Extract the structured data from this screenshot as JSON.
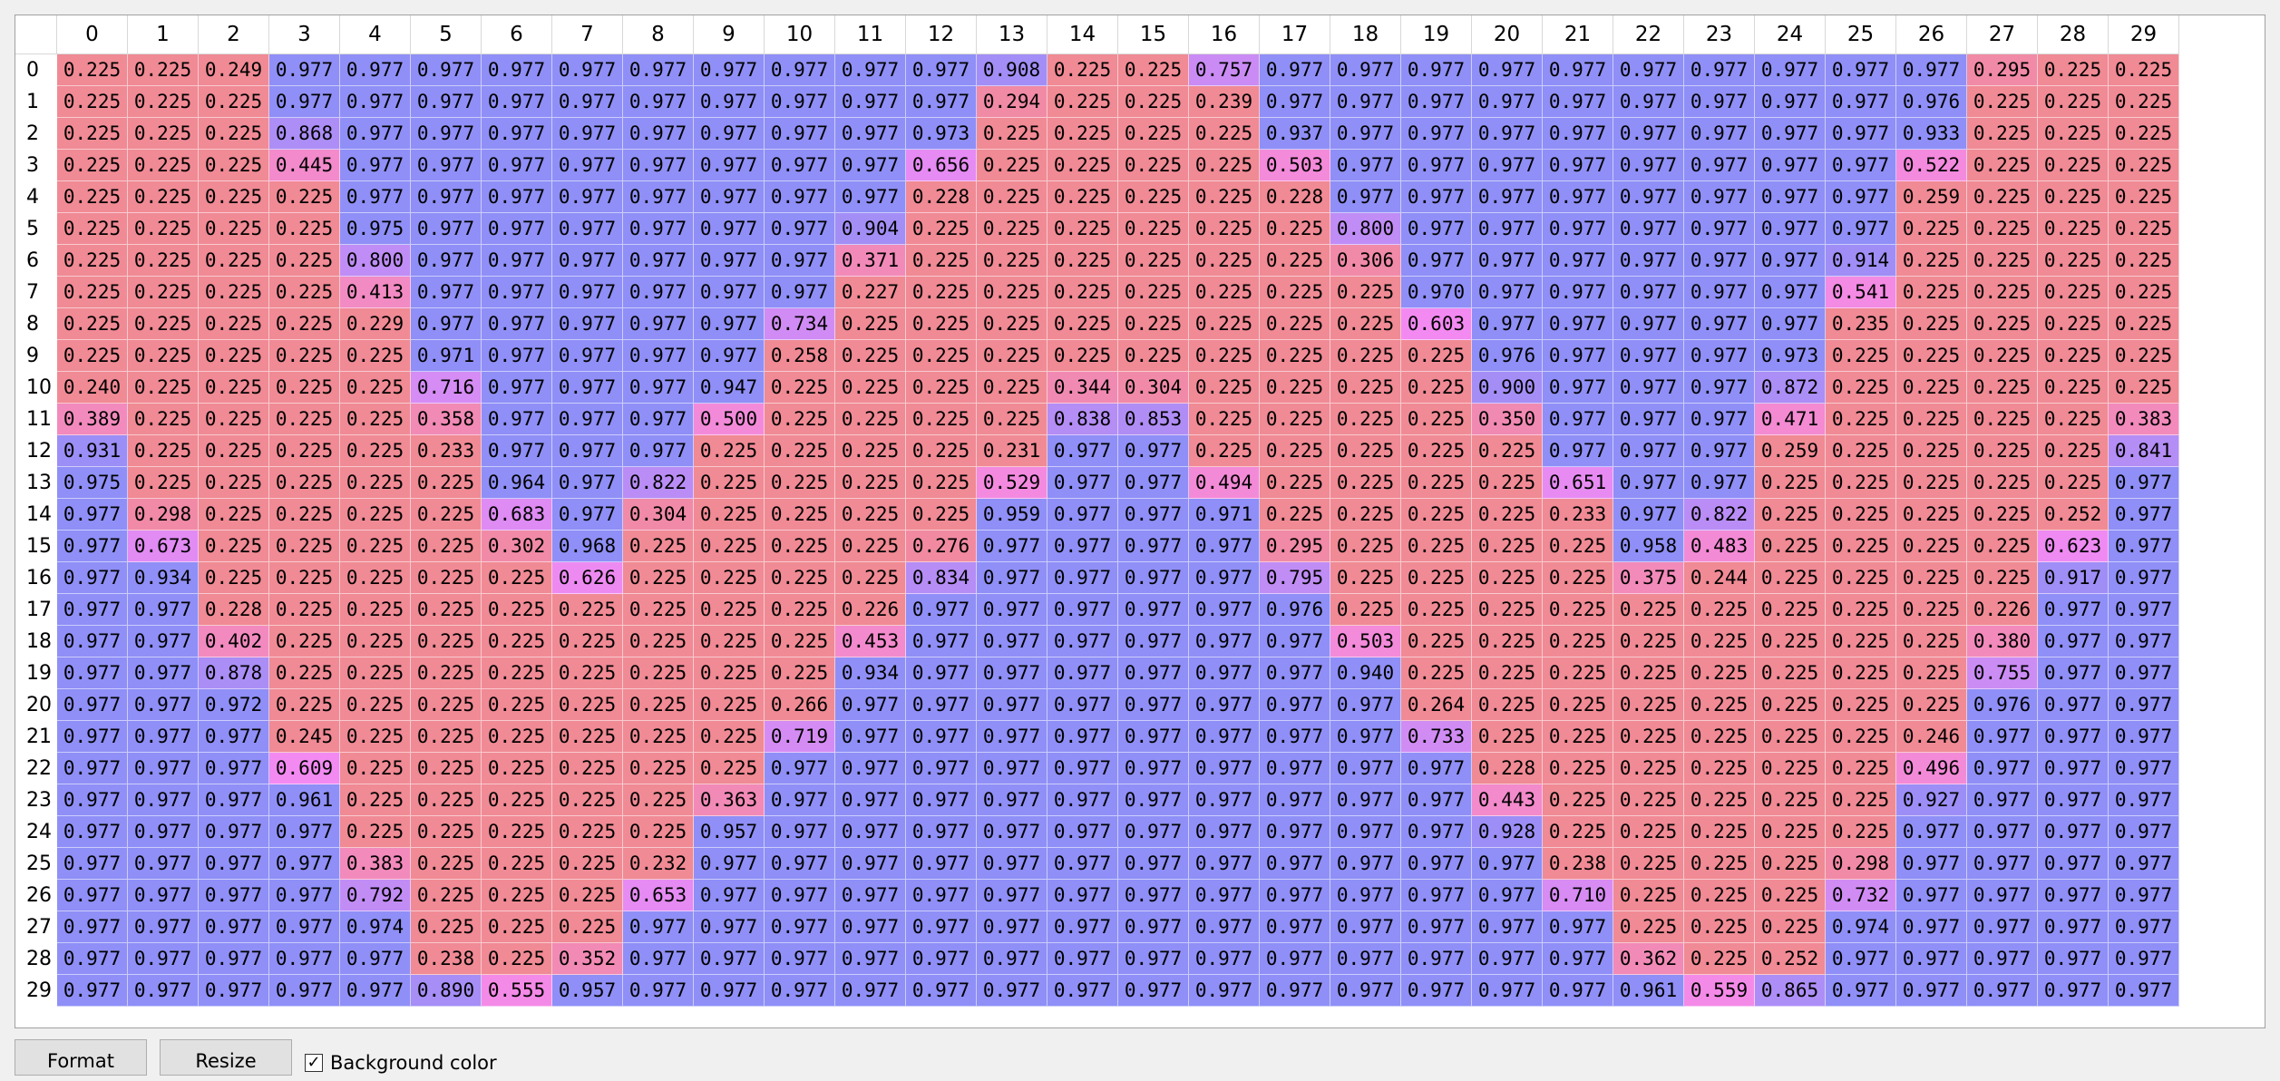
{
  "table": {
    "columns": [
      "0",
      "1",
      "2",
      "3",
      "4",
      "5",
      "6",
      "7",
      "8",
      "9",
      "10",
      "11",
      "12",
      "13",
      "14",
      "15",
      "16",
      "17",
      "18",
      "19",
      "20",
      "21",
      "22",
      "23",
      "24",
      "25",
      "26",
      "27",
      "28",
      "29"
    ],
    "rows": [
      "0",
      "1",
      "2",
      "3",
      "4",
      "5",
      "6",
      "7",
      "8",
      "9",
      "10",
      "11",
      "12",
      "13",
      "14",
      "15",
      "16",
      "17",
      "18",
      "19",
      "20",
      "21",
      "22",
      "23",
      "24",
      "25",
      "26",
      "27",
      "28",
      "29"
    ],
    "colors": {
      "low": "#f08a94",
      "high": "#8f8ff7",
      "mid": "#f48af2"
    },
    "cells": [
      [
        "0.225",
        "0.225",
        "0.249",
        "0.977",
        "0.977",
        "0.977",
        "0.977",
        "0.977",
        "0.977",
        "0.977",
        "0.977",
        "0.977",
        "0.977",
        "0.908",
        "0.225",
        "0.225",
        "0.757",
        "0.977",
        "0.977",
        "0.977",
        "0.977",
        "0.977",
        "0.977",
        "0.977",
        "0.977",
        "0.977",
        "0.977",
        "0.295",
        "0.225",
        "0.225"
      ],
      [
        "0.225",
        "0.225",
        "0.225",
        "0.977",
        "0.977",
        "0.977",
        "0.977",
        "0.977",
        "0.977",
        "0.977",
        "0.977",
        "0.977",
        "0.977",
        "0.294",
        "0.225",
        "0.225",
        "0.239",
        "0.977",
        "0.977",
        "0.977",
        "0.977",
        "0.977",
        "0.977",
        "0.977",
        "0.977",
        "0.977",
        "0.976",
        "0.225",
        "0.225",
        "0.225"
      ],
      [
        "0.225",
        "0.225",
        "0.225",
        "0.868",
        "0.977",
        "0.977",
        "0.977",
        "0.977",
        "0.977",
        "0.977",
        "0.977",
        "0.977",
        "0.973",
        "0.225",
        "0.225",
        "0.225",
        "0.225",
        "0.937",
        "0.977",
        "0.977",
        "0.977",
        "0.977",
        "0.977",
        "0.977",
        "0.977",
        "0.977",
        "0.933",
        "0.225",
        "0.225",
        "0.225"
      ],
      [
        "0.225",
        "0.225",
        "0.225",
        "0.445",
        "0.977",
        "0.977",
        "0.977",
        "0.977",
        "0.977",
        "0.977",
        "0.977",
        "0.977",
        "0.656",
        "0.225",
        "0.225",
        "0.225",
        "0.225",
        "0.503",
        "0.977",
        "0.977",
        "0.977",
        "0.977",
        "0.977",
        "0.977",
        "0.977",
        "0.977",
        "0.522",
        "0.225",
        "0.225",
        "0.225"
      ],
      [
        "0.225",
        "0.225",
        "0.225",
        "0.225",
        "0.977",
        "0.977",
        "0.977",
        "0.977",
        "0.977",
        "0.977",
        "0.977",
        "0.977",
        "0.228",
        "0.225",
        "0.225",
        "0.225",
        "0.225",
        "0.228",
        "0.977",
        "0.977",
        "0.977",
        "0.977",
        "0.977",
        "0.977",
        "0.977",
        "0.977",
        "0.259",
        "0.225",
        "0.225",
        "0.225"
      ],
      [
        "0.225",
        "0.225",
        "0.225",
        "0.225",
        "0.975",
        "0.977",
        "0.977",
        "0.977",
        "0.977",
        "0.977",
        "0.977",
        "0.904",
        "0.225",
        "0.225",
        "0.225",
        "0.225",
        "0.225",
        "0.225",
        "0.800",
        "0.977",
        "0.977",
        "0.977",
        "0.977",
        "0.977",
        "0.977",
        "0.977",
        "0.225",
        "0.225",
        "0.225",
        "0.225"
      ],
      [
        "0.225",
        "0.225",
        "0.225",
        "0.225",
        "0.800",
        "0.977",
        "0.977",
        "0.977",
        "0.977",
        "0.977",
        "0.977",
        "0.371",
        "0.225",
        "0.225",
        "0.225",
        "0.225",
        "0.225",
        "0.225",
        "0.306",
        "0.977",
        "0.977",
        "0.977",
        "0.977",
        "0.977",
        "0.977",
        "0.914",
        "0.225",
        "0.225",
        "0.225",
        "0.225"
      ],
      [
        "0.225",
        "0.225",
        "0.225",
        "0.225",
        "0.413",
        "0.977",
        "0.977",
        "0.977",
        "0.977",
        "0.977",
        "0.977",
        "0.227",
        "0.225",
        "0.225",
        "0.225",
        "0.225",
        "0.225",
        "0.225",
        "0.225",
        "0.970",
        "0.977",
        "0.977",
        "0.977",
        "0.977",
        "0.977",
        "0.541",
        "0.225",
        "0.225",
        "0.225",
        "0.225"
      ],
      [
        "0.225",
        "0.225",
        "0.225",
        "0.225",
        "0.229",
        "0.977",
        "0.977",
        "0.977",
        "0.977",
        "0.977",
        "0.734",
        "0.225",
        "0.225",
        "0.225",
        "0.225",
        "0.225",
        "0.225",
        "0.225",
        "0.225",
        "0.603",
        "0.977",
        "0.977",
        "0.977",
        "0.977",
        "0.977",
        "0.235",
        "0.225",
        "0.225",
        "0.225",
        "0.225"
      ],
      [
        "0.225",
        "0.225",
        "0.225",
        "0.225",
        "0.225",
        "0.971",
        "0.977",
        "0.977",
        "0.977",
        "0.977",
        "0.258",
        "0.225",
        "0.225",
        "0.225",
        "0.225",
        "0.225",
        "0.225",
        "0.225",
        "0.225",
        "0.225",
        "0.976",
        "0.977",
        "0.977",
        "0.977",
        "0.973",
        "0.225",
        "0.225",
        "0.225",
        "0.225",
        "0.225"
      ],
      [
        "0.240",
        "0.225",
        "0.225",
        "0.225",
        "0.225",
        "0.716",
        "0.977",
        "0.977",
        "0.977",
        "0.947",
        "0.225",
        "0.225",
        "0.225",
        "0.225",
        "0.344",
        "0.304",
        "0.225",
        "0.225",
        "0.225",
        "0.225",
        "0.900",
        "0.977",
        "0.977",
        "0.977",
        "0.872",
        "0.225",
        "0.225",
        "0.225",
        "0.225",
        "0.225"
      ],
      [
        "0.389",
        "0.225",
        "0.225",
        "0.225",
        "0.225",
        "0.358",
        "0.977",
        "0.977",
        "0.977",
        "0.500",
        "0.225",
        "0.225",
        "0.225",
        "0.225",
        "0.838",
        "0.853",
        "0.225",
        "0.225",
        "0.225",
        "0.225",
        "0.350",
        "0.977",
        "0.977",
        "0.977",
        "0.471",
        "0.225",
        "0.225",
        "0.225",
        "0.225",
        "0.383"
      ],
      [
        "0.931",
        "0.225",
        "0.225",
        "0.225",
        "0.225",
        "0.233",
        "0.977",
        "0.977",
        "0.977",
        "0.225",
        "0.225",
        "0.225",
        "0.225",
        "0.231",
        "0.977",
        "0.977",
        "0.225",
        "0.225",
        "0.225",
        "0.225",
        "0.225",
        "0.977",
        "0.977",
        "0.977",
        "0.259",
        "0.225",
        "0.225",
        "0.225",
        "0.225",
        "0.841"
      ],
      [
        "0.975",
        "0.225",
        "0.225",
        "0.225",
        "0.225",
        "0.225",
        "0.964",
        "0.977",
        "0.822",
        "0.225",
        "0.225",
        "0.225",
        "0.225",
        "0.529",
        "0.977",
        "0.977",
        "0.494",
        "0.225",
        "0.225",
        "0.225",
        "0.225",
        "0.651",
        "0.977",
        "0.977",
        "0.225",
        "0.225",
        "0.225",
        "0.225",
        "0.225",
        "0.977"
      ],
      [
        "0.977",
        "0.298",
        "0.225",
        "0.225",
        "0.225",
        "0.225",
        "0.683",
        "0.977",
        "0.304",
        "0.225",
        "0.225",
        "0.225",
        "0.225",
        "0.959",
        "0.977",
        "0.977",
        "0.971",
        "0.225",
        "0.225",
        "0.225",
        "0.225",
        "0.233",
        "0.977",
        "0.822",
        "0.225",
        "0.225",
        "0.225",
        "0.225",
        "0.252",
        "0.977"
      ],
      [
        "0.977",
        "0.673",
        "0.225",
        "0.225",
        "0.225",
        "0.225",
        "0.302",
        "0.968",
        "0.225",
        "0.225",
        "0.225",
        "0.225",
        "0.276",
        "0.977",
        "0.977",
        "0.977",
        "0.977",
        "0.295",
        "0.225",
        "0.225",
        "0.225",
        "0.225",
        "0.958",
        "0.483",
        "0.225",
        "0.225",
        "0.225",
        "0.225",
        "0.623",
        "0.977"
      ],
      [
        "0.977",
        "0.934",
        "0.225",
        "0.225",
        "0.225",
        "0.225",
        "0.225",
        "0.626",
        "0.225",
        "0.225",
        "0.225",
        "0.225",
        "0.834",
        "0.977",
        "0.977",
        "0.977",
        "0.977",
        "0.795",
        "0.225",
        "0.225",
        "0.225",
        "0.225",
        "0.375",
        "0.244",
        "0.225",
        "0.225",
        "0.225",
        "0.225",
        "0.917",
        "0.977"
      ],
      [
        "0.977",
        "0.977",
        "0.228",
        "0.225",
        "0.225",
        "0.225",
        "0.225",
        "0.225",
        "0.225",
        "0.225",
        "0.225",
        "0.226",
        "0.977",
        "0.977",
        "0.977",
        "0.977",
        "0.977",
        "0.976",
        "0.225",
        "0.225",
        "0.225",
        "0.225",
        "0.225",
        "0.225",
        "0.225",
        "0.225",
        "0.225",
        "0.226",
        "0.977",
        "0.977"
      ],
      [
        "0.977",
        "0.977",
        "0.402",
        "0.225",
        "0.225",
        "0.225",
        "0.225",
        "0.225",
        "0.225",
        "0.225",
        "0.225",
        "0.453",
        "0.977",
        "0.977",
        "0.977",
        "0.977",
        "0.977",
        "0.977",
        "0.503",
        "0.225",
        "0.225",
        "0.225",
        "0.225",
        "0.225",
        "0.225",
        "0.225",
        "0.225",
        "0.380",
        "0.977",
        "0.977"
      ],
      [
        "0.977",
        "0.977",
        "0.878",
        "0.225",
        "0.225",
        "0.225",
        "0.225",
        "0.225",
        "0.225",
        "0.225",
        "0.225",
        "0.934",
        "0.977",
        "0.977",
        "0.977",
        "0.977",
        "0.977",
        "0.977",
        "0.940",
        "0.225",
        "0.225",
        "0.225",
        "0.225",
        "0.225",
        "0.225",
        "0.225",
        "0.225",
        "0.755",
        "0.977",
        "0.977"
      ],
      [
        "0.977",
        "0.977",
        "0.972",
        "0.225",
        "0.225",
        "0.225",
        "0.225",
        "0.225",
        "0.225",
        "0.225",
        "0.266",
        "0.977",
        "0.977",
        "0.977",
        "0.977",
        "0.977",
        "0.977",
        "0.977",
        "0.977",
        "0.264",
        "0.225",
        "0.225",
        "0.225",
        "0.225",
        "0.225",
        "0.225",
        "0.225",
        "0.976",
        "0.977",
        "0.977"
      ],
      [
        "0.977",
        "0.977",
        "0.977",
        "0.245",
        "0.225",
        "0.225",
        "0.225",
        "0.225",
        "0.225",
        "0.225",
        "0.719",
        "0.977",
        "0.977",
        "0.977",
        "0.977",
        "0.977",
        "0.977",
        "0.977",
        "0.977",
        "0.733",
        "0.225",
        "0.225",
        "0.225",
        "0.225",
        "0.225",
        "0.225",
        "0.246",
        "0.977",
        "0.977",
        "0.977"
      ],
      [
        "0.977",
        "0.977",
        "0.977",
        "0.609",
        "0.225",
        "0.225",
        "0.225",
        "0.225",
        "0.225",
        "0.225",
        "0.977",
        "0.977",
        "0.977",
        "0.977",
        "0.977",
        "0.977",
        "0.977",
        "0.977",
        "0.977",
        "0.977",
        "0.228",
        "0.225",
        "0.225",
        "0.225",
        "0.225",
        "0.225",
        "0.496",
        "0.977",
        "0.977",
        "0.977"
      ],
      [
        "0.977",
        "0.977",
        "0.977",
        "0.961",
        "0.225",
        "0.225",
        "0.225",
        "0.225",
        "0.225",
        "0.363",
        "0.977",
        "0.977",
        "0.977",
        "0.977",
        "0.977",
        "0.977",
        "0.977",
        "0.977",
        "0.977",
        "0.977",
        "0.443",
        "0.225",
        "0.225",
        "0.225",
        "0.225",
        "0.225",
        "0.927",
        "0.977",
        "0.977",
        "0.977"
      ],
      [
        "0.977",
        "0.977",
        "0.977",
        "0.977",
        "0.225",
        "0.225",
        "0.225",
        "0.225",
        "0.225",
        "0.957",
        "0.977",
        "0.977",
        "0.977",
        "0.977",
        "0.977",
        "0.977",
        "0.977",
        "0.977",
        "0.977",
        "0.977",
        "0.928",
        "0.225",
        "0.225",
        "0.225",
        "0.225",
        "0.225",
        "0.977",
        "0.977",
        "0.977",
        "0.977"
      ],
      [
        "0.977",
        "0.977",
        "0.977",
        "0.977",
        "0.383",
        "0.225",
        "0.225",
        "0.225",
        "0.232",
        "0.977",
        "0.977",
        "0.977",
        "0.977",
        "0.977",
        "0.977",
        "0.977",
        "0.977",
        "0.977",
        "0.977",
        "0.977",
        "0.977",
        "0.238",
        "0.225",
        "0.225",
        "0.225",
        "0.298",
        "0.977",
        "0.977",
        "0.977",
        "0.977"
      ],
      [
        "0.977",
        "0.977",
        "0.977",
        "0.977",
        "0.792",
        "0.225",
        "0.225",
        "0.225",
        "0.653",
        "0.977",
        "0.977",
        "0.977",
        "0.977",
        "0.977",
        "0.977",
        "0.977",
        "0.977",
        "0.977",
        "0.977",
        "0.977",
        "0.977",
        "0.710",
        "0.225",
        "0.225",
        "0.225",
        "0.732",
        "0.977",
        "0.977",
        "0.977",
        "0.977"
      ],
      [
        "0.977",
        "0.977",
        "0.977",
        "0.977",
        "0.974",
        "0.225",
        "0.225",
        "0.225",
        "0.977",
        "0.977",
        "0.977",
        "0.977",
        "0.977",
        "0.977",
        "0.977",
        "0.977",
        "0.977",
        "0.977",
        "0.977",
        "0.977",
        "0.977",
        "0.977",
        "0.225",
        "0.225",
        "0.225",
        "0.974",
        "0.977",
        "0.977",
        "0.977",
        "0.977"
      ],
      [
        "0.977",
        "0.977",
        "0.977",
        "0.977",
        "0.977",
        "0.238",
        "0.225",
        "0.352",
        "0.977",
        "0.977",
        "0.977",
        "0.977",
        "0.977",
        "0.977",
        "0.977",
        "0.977",
        "0.977",
        "0.977",
        "0.977",
        "0.977",
        "0.977",
        "0.977",
        "0.362",
        "0.225",
        "0.252",
        "0.977",
        "0.977",
        "0.977",
        "0.977",
        "0.977"
      ],
      [
        "0.977",
        "0.977",
        "0.977",
        "0.977",
        "0.977",
        "0.890",
        "0.555",
        "0.957",
        "0.977",
        "0.977",
        "0.977",
        "0.977",
        "0.977",
        "0.977",
        "0.977",
        "0.977",
        "0.977",
        "0.977",
        "0.977",
        "0.977",
        "0.977",
        "0.977",
        "0.961",
        "0.559",
        "0.865",
        "0.977",
        "0.977",
        "0.977",
        "0.977",
        "0.977"
      ]
    ]
  },
  "toolbar": {
    "format_label": "Format",
    "resize_label": "Resize",
    "background_color_label": "Background color",
    "background_color_checked": true,
    "check_glyph": "✓"
  }
}
